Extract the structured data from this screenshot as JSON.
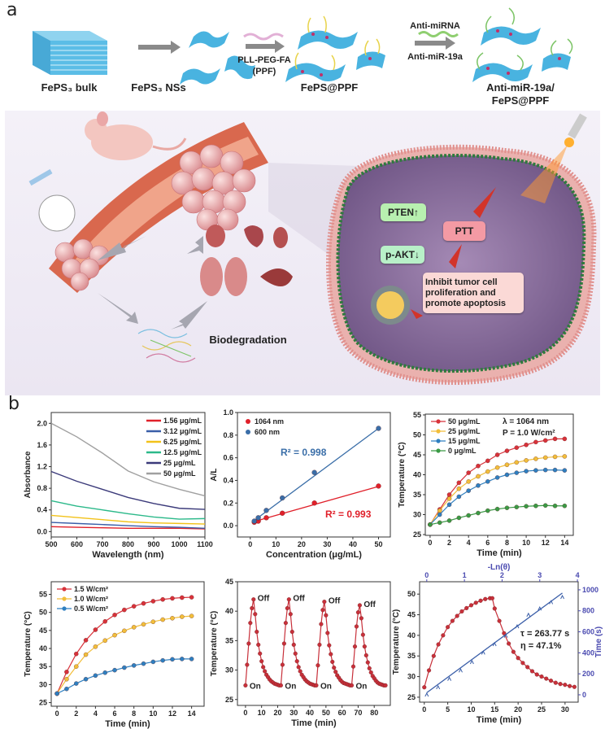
{
  "panels": {
    "a": "a",
    "b": "b"
  },
  "schematic": {
    "top_labels": [
      "FePS₃ bulk",
      "FePS₃ NSs",
      "FePS@PPF",
      "Anti-miR-19a/",
      "FePS@PPF"
    ],
    "ppf_label_1": "PLL-PEG-FA",
    "ppf_label_2": "(PPF)",
    "anti_mirna_label": "Anti-miRNA",
    "anti_mir19a_label": "Anti-miR-19a",
    "pten": "PTEN↑",
    "pakt": "p-AKT↓",
    "ptt": "PTT",
    "outcome": "Inhibit tumor cell proliferation and promote apoptosis",
    "biodegradation": "Biodegradation",
    "colors": {
      "nanosheet": "#3fb0dc",
      "pten_box": "#b8f0b0",
      "ptt_box": "#f49aa4",
      "outcome_box": "#fbd9d6",
      "cell": "#8a6a9a"
    }
  },
  "chart_data": [
    {
      "type": "line",
      "xlabel": "Wavelength (nm)",
      "ylabel": "Absorbance",
      "xlim": [
        500,
        1100
      ],
      "ylim": [
        -0.1,
        2.2
      ],
      "xticks": [
        500,
        600,
        700,
        800,
        900,
        1000,
        1100
      ],
      "yticks": [
        0.0,
        0.4,
        0.8,
        1.2,
        1.6,
        2.0
      ],
      "ytick_decimals": 1,
      "legend": "top-right",
      "x": [
        500,
        600,
        700,
        800,
        900,
        1000,
        1100
      ],
      "series": [
        {
          "name": "1.56 μg/mL",
          "color": "#e0202a",
          "values": [
            0.09,
            0.08,
            0.07,
            0.06,
            0.06,
            0.06,
            0.05
          ]
        },
        {
          "name": "3.12 μg/mL",
          "color": "#3a5ea8",
          "values": [
            0.17,
            0.15,
            0.13,
            0.11,
            0.09,
            0.08,
            0.06
          ]
        },
        {
          "name": "6.25 μg/mL",
          "color": "#f2c21a",
          "values": [
            0.3,
            0.26,
            0.22,
            0.18,
            0.16,
            0.15,
            0.14
          ]
        },
        {
          "name": "12.5 μg/mL",
          "color": "#2cb98a",
          "values": [
            0.57,
            0.47,
            0.4,
            0.33,
            0.27,
            0.23,
            0.24
          ]
        },
        {
          "name": "25 μg/mL",
          "color": "#3b3a7a",
          "values": [
            1.11,
            0.93,
            0.78,
            0.63,
            0.52,
            0.43,
            0.41
          ]
        },
        {
          "name": "50 μg/mL",
          "color": "#a0a0a0",
          "values": [
            2.0,
            1.75,
            1.45,
            1.12,
            0.92,
            0.78,
            0.66
          ]
        }
      ]
    },
    {
      "type": "scatter",
      "xlabel": "Concentration (μg/mL)",
      "ylabel": "A/L",
      "xlim": [
        -5,
        54.6
      ],
      "ylim": [
        -0.1,
        1.0
      ],
      "xticks": [
        0,
        10,
        20,
        30,
        40,
        50
      ],
      "yticks": [
        0.0,
        0.2,
        0.4,
        0.6,
        0.8,
        1.0
      ],
      "ytick_decimals": 1,
      "legend": "top-left",
      "x": [
        1.56,
        3.12,
        6.25,
        12.5,
        25,
        50
      ],
      "series": [
        {
          "name": "1064 nm",
          "color": "#e0202a",
          "values": [
            0.03,
            0.04,
            0.07,
            0.11,
            0.2,
            0.35
          ],
          "fit": {
            "slope": 0.0064,
            "intercept": 0.027,
            "r2": "R² = 0.993"
          }
        },
        {
          "name": "600 nm",
          "color": "#3a6ea8",
          "values": [
            0.04,
            0.07,
            0.135,
            0.245,
            0.47,
            0.86
          ],
          "fit": {
            "slope": 0.0168,
            "intercept": 0.02,
            "r2": "R² = 0.998"
          }
        }
      ]
    },
    {
      "type": "line",
      "xlabel": "Time (min)",
      "ylabel": "Temperature (°C)",
      "xlim": [
        -0.5,
        14.9
      ],
      "ylim": [
        24.8,
        55.2
      ],
      "xticks": [
        0,
        2,
        4,
        6,
        8,
        10,
        12,
        14
      ],
      "yticks": [
        25,
        30,
        35,
        40,
        45,
        50,
        55
      ],
      "ytick_decimals": 0,
      "legend": "top-left",
      "annotations": [
        "λ = 1064 nm",
        "P = 1.0 W/cm²"
      ],
      "x": [
        0,
        1,
        2,
        3,
        4,
        5,
        6,
        7,
        8,
        9,
        10,
        11,
        12,
        13,
        14
      ],
      "series": [
        {
          "name": "50 μg/mL",
          "color": "#d8323a",
          "values": [
            27.5,
            31.3,
            35,
            38,
            40.5,
            42.2,
            43.5,
            45,
            46,
            46.8,
            47.5,
            48.2,
            48.6,
            49,
            49
          ]
        },
        {
          "name": "25 μg/mL",
          "color": "#f2be3a",
          "values": [
            27.5,
            31,
            34,
            36.5,
            38.3,
            39.6,
            40.8,
            41.8,
            42.5,
            43.1,
            43.6,
            44,
            44.3,
            44.5,
            44.6
          ]
        },
        {
          "name": "15 μg/mL",
          "color": "#2e7fc0",
          "values": [
            27.5,
            30,
            32.5,
            34.5,
            36,
            37.3,
            38.3,
            39.3,
            40,
            40.5,
            40.9,
            41.1,
            41.2,
            41.2,
            41.1
          ]
        },
        {
          "name": "0   μg/mL",
          "color": "#3a9a45",
          "values": [
            27.5,
            28,
            28.5,
            29.2,
            29.8,
            30.4,
            31,
            31.4,
            31.7,
            31.9,
            32.1,
            32.2,
            32.3,
            32.2,
            32.2
          ]
        }
      ]
    },
    {
      "type": "line",
      "xlabel": "Time (min)",
      "ylabel": "Temperature (°C)",
      "xlim": [
        -0.6,
        15.3
      ],
      "ylim": [
        24,
        58.5
      ],
      "xticks": [
        0,
        2,
        4,
        6,
        8,
        10,
        12,
        14
      ],
      "yticks": [
        25,
        30,
        35,
        40,
        45,
        50,
        55
      ],
      "ytick_decimals": 0,
      "legend": "top-left",
      "x": [
        0,
        1,
        2,
        3,
        4,
        5,
        6,
        7,
        8,
        9,
        10,
        11,
        12,
        13,
        14
      ],
      "series": [
        {
          "name": "1.5 W/cm²",
          "color": "#d8323a",
          "values": [
            27.5,
            33.5,
            38.5,
            42.3,
            45.2,
            47.5,
            49.3,
            50.7,
            51.7,
            52.5,
            53.1,
            53.6,
            53.9,
            54.1,
            54.2
          ]
        },
        {
          "name": "1.0 W/cm²",
          "color": "#f2be3a",
          "values": [
            27.5,
            31.5,
            35,
            38.3,
            40.5,
            42.2,
            43.7,
            44.9,
            45.9,
            46.7,
            47.4,
            48,
            48.4,
            48.8,
            49
          ]
        },
        {
          "name": "0.5 W/cm²",
          "color": "#2e7fc0",
          "values": [
            27.5,
            28.8,
            30.3,
            31.5,
            32.5,
            33.3,
            34,
            34.7,
            35.3,
            35.8,
            36.3,
            36.7,
            37,
            37.1,
            37.1
          ]
        }
      ]
    },
    {
      "type": "line",
      "xlabel": "Time (min)",
      "ylabel": "Temperature (°C)",
      "xlim": [
        -5,
        90
      ],
      "ylim": [
        24,
        45
      ],
      "xticks": [
        0,
        10,
        20,
        30,
        40,
        50,
        60,
        70,
        80
      ],
      "yticks": [
        25,
        30,
        35,
        40,
        45
      ],
      "ytick_decimals": 0,
      "on_label": "On",
      "off_label": "Off",
      "color": "#c8303a",
      "cycles": [
        {
          "start": 0,
          "temps": [
            27.4,
            30.9,
            34.5,
            38,
            40.5,
            42,
            39.5,
            36.5,
            34.3,
            32.8,
            31.5,
            30.5,
            29.8,
            29.2,
            28.8,
            28.4,
            28.1,
            27.9,
            27.7,
            27.6,
            27.5,
            27.4
          ]
        },
        {
          "start": 22,
          "temps": [
            27.4,
            30.9,
            34.5,
            38,
            40.5,
            42,
            39.5,
            36.5,
            34.3,
            32.8,
            31.5,
            30.5,
            29.8,
            29.2,
            28.8,
            28.4,
            28.1,
            27.9,
            27.7,
            27.6,
            27.5,
            27.4
          ]
        },
        {
          "start": 44,
          "temps": [
            27.4,
            30.8,
            34.3,
            37.8,
            40.2,
            41.6,
            39.3,
            36.3,
            34.2,
            32.7,
            31.4,
            30.4,
            29.7,
            29.1,
            28.7,
            28.3,
            28.0,
            27.8,
            27.7,
            27.6,
            27.5,
            27.4
          ]
        },
        {
          "start": 66,
          "temps": [
            27.4,
            30.6,
            34,
            37.4,
            39.8,
            41,
            38.8,
            36,
            34,
            32.5,
            31.3,
            30.3,
            29.6,
            29,
            28.6,
            28.2,
            27.9,
            27.7,
            27.6,
            27.5,
            27.4,
            27.4
          ]
        }
      ]
    },
    {
      "type": "line",
      "xlabel": "Time (min)",
      "ylabel": "Temperature (°C)",
      "xlim": [
        -1,
        32.8
      ],
      "ylim": [
        23.8,
        53
      ],
      "xticks": [
        0,
        5,
        10,
        15,
        20,
        25,
        30
      ],
      "yticks": [
        25,
        30,
        35,
        40,
        45,
        50
      ],
      "ytick_decimals": 0,
      "x2label": "-Ln(θ)",
      "x2lim": [
        -0.19,
        4.02
      ],
      "x2ticks": [
        0,
        1,
        2,
        3,
        4
      ],
      "y2label": "Time (s)",
      "y2lim": [
        -70,
        1077
      ],
      "y2ticks": [
        0,
        200,
        400,
        600,
        800,
        1000
      ],
      "axis2_color": "#4a4ab0",
      "annotations": [
        "τ = 263.77 s",
        "η = 47.1%"
      ],
      "temperature": {
        "color": "#c8303a",
        "x": [
          0,
          1,
          2,
          3,
          4,
          5,
          6,
          7,
          8,
          9,
          10,
          11,
          12,
          13,
          14,
          14.5,
          15,
          16,
          17,
          18,
          19,
          20,
          21,
          22,
          23,
          24,
          25,
          26,
          27,
          28,
          29,
          30,
          31,
          32
        ],
        "values": [
          27.4,
          31.5,
          35,
          37.8,
          40,
          42,
          43.5,
          44.7,
          45.8,
          46.6,
          47.3,
          47.9,
          48.4,
          48.8,
          49,
          49,
          46.5,
          43.5,
          40.5,
          38,
          36,
          34.5,
          33.3,
          32.3,
          31.3,
          30.5,
          30,
          29.5,
          29,
          28.5,
          28.2,
          28,
          27.7,
          27.5
        ]
      },
      "fit_points": {
        "color": "#3a5ea8",
        "x": [
          0,
          0.3,
          0.6,
          0.9,
          1.2,
          1.5,
          1.8,
          2.1,
          2.4,
          2.7,
          3.0,
          3.3,
          3.6
        ],
        "values": [
          0,
          70,
          150,
          230,
          310,
          400,
          480,
          560,
          650,
          760,
          820,
          880,
          930
        ],
        "fit": {
          "slope": 263.77,
          "intercept": 20
        }
      }
    }
  ]
}
